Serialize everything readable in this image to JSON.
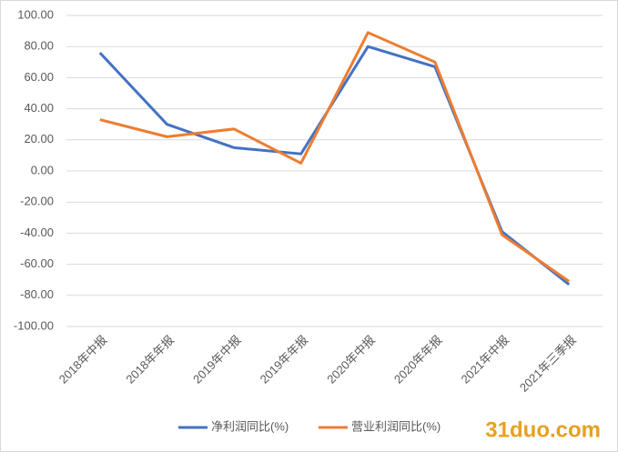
{
  "chart_data": {
    "type": "line",
    "categories": [
      "2018年中报",
      "2018年年报",
      "2019年中报",
      "2019年年报",
      "2020年中报",
      "2020年年报",
      "2021年中报",
      "2021年三季报"
    ],
    "series": [
      {
        "name": "净利润同比(%)",
        "color": "#4472c4",
        "values": [
          76,
          30,
          15,
          11,
          80,
          67,
          -39,
          -73
        ]
      },
      {
        "name": "营业利润同比(%)",
        "color": "#ed7d31",
        "values": [
          33,
          22,
          27,
          5,
          89,
          70,
          -41,
          -71
        ]
      }
    ],
    "ylim": [
      -100,
      100
    ],
    "yticks": [
      {
        "value": -100,
        "label": "-100.00"
      },
      {
        "value": -80,
        "label": "-80.00"
      },
      {
        "value": -60,
        "label": "-60.00"
      },
      {
        "value": -40,
        "label": "-40.00"
      },
      {
        "value": -20,
        "label": "-20.00"
      },
      {
        "value": 0,
        "label": "0.00"
      },
      {
        "value": 20,
        "label": "20.00"
      },
      {
        "value": 40,
        "label": "40.00"
      },
      {
        "value": 60,
        "label": "60.00"
      },
      {
        "value": 80,
        "label": "80.00"
      },
      {
        "value": 100,
        "label": "100.00"
      }
    ],
    "grid": true,
    "legend": "bottom",
    "watermark": "31duo.com"
  }
}
